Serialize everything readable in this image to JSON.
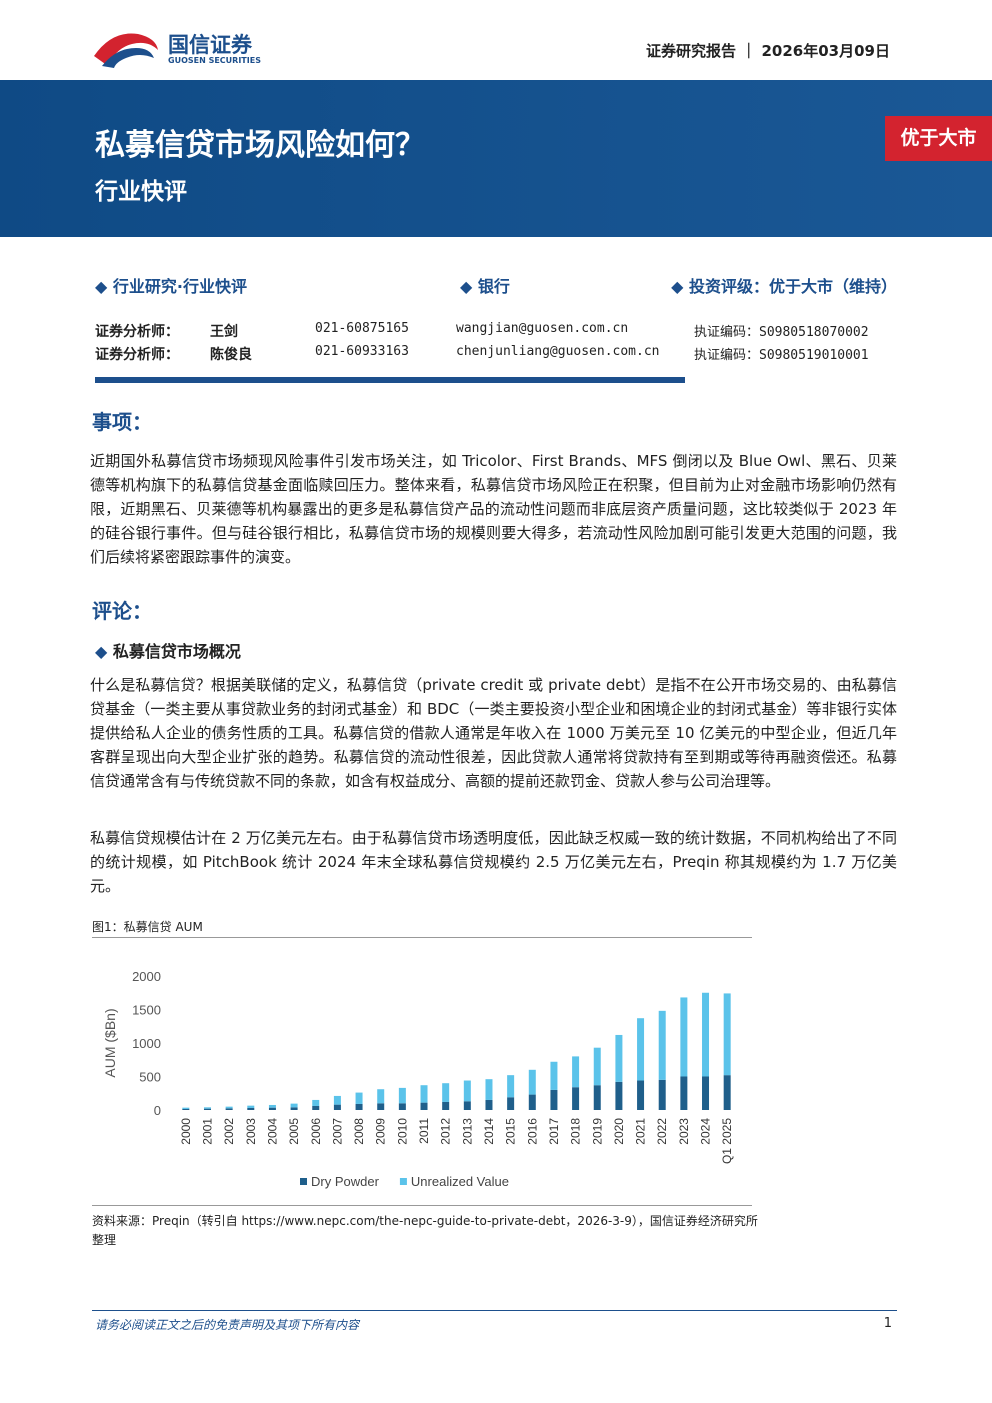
{
  "header": {
    "logo_cn": "国信证券",
    "logo_en": "GUOSEN SECURITIES",
    "report_type": "证券研究报告",
    "date": "2026年03月09日"
  },
  "banner": {
    "title": "私募信贷市场风险如何？",
    "subtitle": "行业快评",
    "rating_badge": "优于大市"
  },
  "info": {
    "category": "行业研究·行业快评",
    "sector": "银行",
    "rating": "投资评级：优于大市（维持）"
  },
  "analysts": [
    [
      "证券分析师：",
      "王剑",
      "021-60875165",
      "wangjian@guosen.com.cn",
      "执证编码：S0980518070002"
    ],
    [
      "证券分析师：",
      "陈俊良",
      "021-60933163",
      "chenjunliang@guosen.com.cn",
      "执证编码：S0980519010001"
    ]
  ],
  "sections": {
    "matter_heading": "事项：",
    "matter_text": "近期国外私募信贷市场频现风险事件引发市场关注，如 Tricolor、First Brands、MFS 倒闭以及 Blue Owl、黑石、贝莱德等机构旗下的私募信贷基金面临赎回压力。整体来看，私募信贷市场风险正在积聚，但目前为止对金融市场影响仍然有限，近期黑石、贝莱德等机构暴露出的更多是私募信贷产品的流动性问题而非底层资产质量问题，这比较类似于 2023 年的硅谷银行事件。但与硅谷银行相比，私募信贷市场的规模则要大得多，若流动性风险加剧可能引发更大范围的问题，我们后续将紧密跟踪事件的演变。",
    "comment_heading": "评论：",
    "sub_heading": "私募信贷市场概况",
    "para1": "什么是私募信贷？根据美联储的定义，私募信贷（private credit 或 private debt）是指不在公开市场交易的、由私募信贷基金（一类主要从事贷款业务的封闭式基金）和 BDC（一类主要投资小型企业和困境企业的封闭式基金）等非银行实体提供给私人企业的债务性质的工具。私募信贷的借款人通常是年收入在 1000 万美元至 10 亿美元的中型企业，但近几年客群呈现出向大型企业扩张的趋势。私募信贷的流动性很差，因此贷款人通常将贷款持有至到期或等待再融资偿还。私募信贷通常含有与传统贷款不同的条款，如含有权益成分、高额的提前还款罚金、贷款人参与公司治理等。",
    "para2": "私募信贷规模估计在 2 万亿美元左右。由于私募信贷市场透明度低，因此缺乏权威一致的统计数据，不同机构给出了不同的统计规模，如 PitchBook 统计 2024 年末全球私募信贷规模约 2.5 万亿美元左右，Preqin 称其规模约为 1.7 万亿美元。",
    "figure_caption": "图1：私募信贷 AUM",
    "source": "资料来源：Preqin（转引自 https://www.nepc.com/the-nepc-guide-to-private-debt，2026-3-9），国信证券经济研究所整理"
  },
  "footer": {
    "disclaimer": "请务必阅读正文之后的免责声明及其项下所有内容",
    "page": "1"
  },
  "chart_data": {
    "type": "stacked-bar",
    "y_label": "AUM ($Bn)",
    "categories": [
      "2000",
      "2001",
      "2002",
      "2003",
      "2004",
      "2005",
      "2006",
      "2007",
      "2008",
      "2009",
      "2010",
      "2011",
      "2012",
      "2013",
      "2014",
      "2015",
      "2016",
      "2017",
      "2018",
      "2019",
      "2020",
      "2021",
      "2022",
      "2023",
      "2024",
      "Q1 2025"
    ],
    "series": [
      {
        "name": "Dry Powder",
        "color": "#1f5f8b",
        "values": [
          15,
          20,
          25,
          30,
          35,
          40,
          60,
          80,
          90,
          100,
          100,
          110,
          120,
          130,
          150,
          190,
          230,
          300,
          340,
          370,
          420,
          440,
          450,
          500,
          500,
          520
        ]
      },
      {
        "name": "Unrealized Value",
        "color": "#5bc3ea",
        "values": [
          20,
          20,
          25,
          35,
          40,
          55,
          90,
          130,
          170,
          210,
          230,
          260,
          280,
          310,
          310,
          330,
          370,
          420,
          460,
          560,
          700,
          930,
          1030,
          1180,
          1250,
          1220
        ]
      }
    ],
    "ylim": [
      0,
      2000
    ],
    "yticks": [
      0,
      500,
      1000,
      1500,
      2000
    ],
    "grid": false
  }
}
